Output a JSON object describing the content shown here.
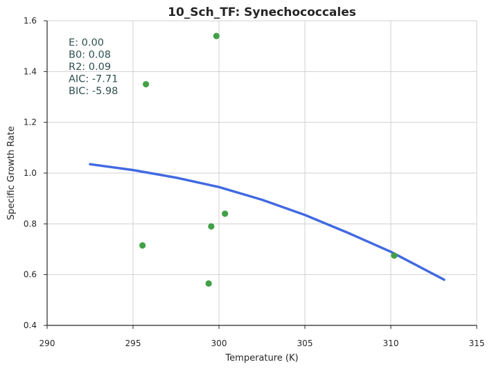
{
  "chart_data": {
    "type": "scatter",
    "title": "10_Sch_TF: Synechococcales",
    "xlabel": "Temperature (K)",
    "ylabel": "Specific Growth Rate",
    "xlim": [
      290,
      315
    ],
    "ylim": [
      0.4,
      1.6
    ],
    "xticks": [
      "290",
      "295",
      "300",
      "305",
      "310",
      "315"
    ],
    "yticks": [
      "0.4",
      "0.6",
      "0.8",
      "1.0",
      "1.2",
      "1.4",
      "1.6"
    ],
    "grid": true,
    "points": {
      "color": "#43a047",
      "x": [
        299.85,
        295.75,
        300.35,
        299.55,
        295.55,
        310.2,
        299.4
      ],
      "y": [
        1.54,
        1.35,
        0.84,
        0.79,
        0.715,
        0.675,
        0.565
      ]
    },
    "fit": {
      "color": "#4169e1",
      "x": [
        292.5,
        295,
        297.5,
        300,
        302.5,
        305,
        307.5,
        310,
        313.1
      ],
      "y": [
        1.035,
        1.012,
        0.982,
        0.945,
        0.895,
        0.835,
        0.765,
        0.69,
        0.58
      ]
    },
    "annotations": [
      "E:  0.00",
      "B0:  0.08",
      "R2:  0.09",
      "AIC: -7.71",
      "BIC: -5.98"
    ]
  }
}
